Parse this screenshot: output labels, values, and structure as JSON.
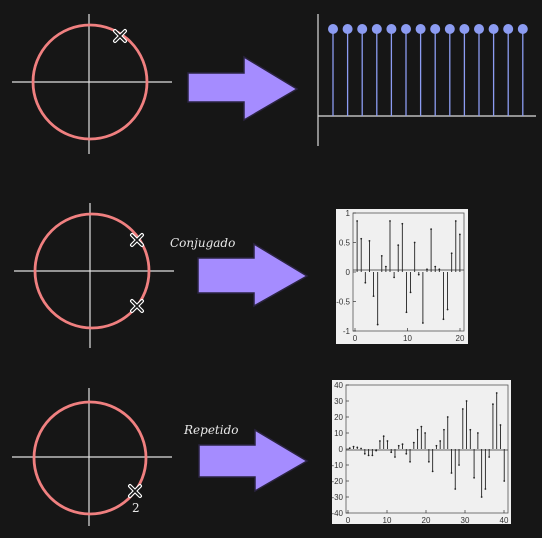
{
  "rows": [
    {
      "id": "row1",
      "label": "",
      "pole_marks": [
        "x"
      ],
      "multiplicity": "",
      "stem_count": 14
    },
    {
      "id": "row2",
      "label": "Conjugado",
      "pole_marks": [
        "x",
        "x"
      ],
      "multiplicity": "",
      "plot": {
        "type": "stem",
        "yticks": [
          "1",
          "0.5",
          "0",
          "-0.5",
          "-1"
        ],
        "xticks": [
          "0",
          "10",
          "20"
        ],
        "values": [
          0.95,
          0.62,
          -0.2,
          0.58,
          -0.45,
          -0.98,
          0.3,
          0.1,
          0.95,
          -0.1,
          0.5,
          0.9,
          -0.75,
          -0.38,
          0.55,
          -0.05,
          -0.95,
          0.05,
          0.8,
          0.1,
          0.05,
          -0.88,
          -0.7,
          0.35,
          0.95,
          0.7
        ]
      }
    },
    {
      "id": "row3",
      "label": "Repetido",
      "pole_marks": [
        "x"
      ],
      "multiplicity": "2",
      "plot": {
        "type": "stem",
        "yticks": [
          "40",
          "30",
          "20",
          "10",
          "0",
          "-10",
          "-20",
          "-30",
          "-40"
        ],
        "xticks": [
          "0",
          "10",
          "20",
          "30",
          "40"
        ],
        "values": [
          0.5,
          1.5,
          1,
          0.3,
          -3,
          -4,
          -4,
          -1,
          5,
          8,
          5,
          -2,
          -5,
          2,
          3,
          -3,
          -8,
          4,
          12,
          14,
          10,
          -8,
          -14,
          2,
          5,
          12,
          20,
          -15,
          -25,
          -10,
          25,
          30,
          12,
          -18,
          10,
          -30,
          -25,
          -5,
          28,
          35,
          15,
          -20
        ]
      }
    }
  ],
  "colors": {
    "background": "#161616",
    "circle": "#f08080",
    "axis": "#e0e0e0",
    "arrow_fill": "#a58cff",
    "arrow_stroke": "#2a2340",
    "stem_blue": "#8c9cf2",
    "plot_bg": "#f0f0f0",
    "stem_dark": "#222222"
  },
  "icons": [
    "arrow-right-icon",
    "pole-x-icon"
  ]
}
